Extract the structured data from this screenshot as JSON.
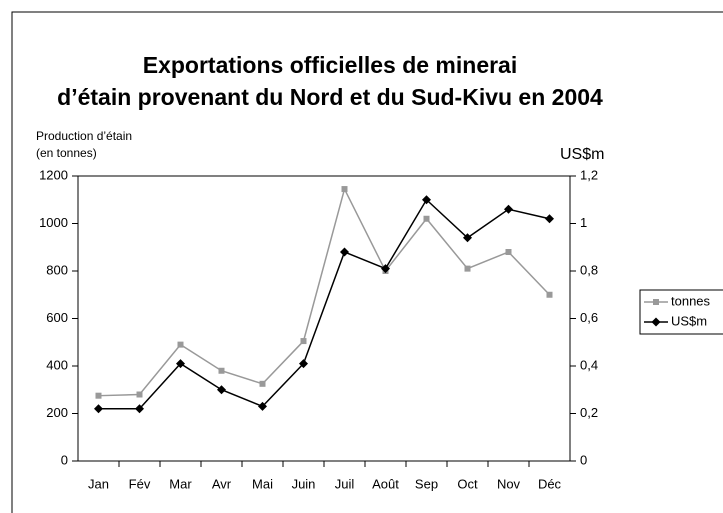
{
  "chart_data": {
    "type": "line",
    "title_lines": [
      "Exportations officielles de minerai",
      "d’étain provenant du Nord et du Sud-Kivu en 2004"
    ],
    "y_label_lines": [
      "Production d’étain",
      "(en tonnes)"
    ],
    "y2_label": "US$m",
    "categories": [
      "Jan",
      "Fév",
      "Mar",
      "Avr",
      "Mai",
      "Juin",
      "Juil",
      "Août",
      "Sep",
      "Oct",
      "Nov",
      "Déc"
    ],
    "series": [
      {
        "name": "tonnes",
        "color": "#999999",
        "marker": "square",
        "values": [
          275,
          280,
          490,
          380,
          325,
          505,
          1145,
          800,
          1020,
          810,
          880,
          700
        ]
      },
      {
        "name": "US$m",
        "color": "#000000",
        "marker": "diamond",
        "axis": "y2",
        "values": [
          0.22,
          0.22,
          0.41,
          0.3,
          0.23,
          0.41,
          0.88,
          0.81,
          1.1,
          0.94,
          1.06,
          1.02
        ]
      }
    ],
    "ylim": [
      0,
      1200
    ],
    "yticks": [
      0,
      200,
      400,
      600,
      800,
      1000,
      1200
    ],
    "y2lim": [
      0,
      1.2
    ],
    "y2ticks": [
      {
        "value": 0,
        "label": "0"
      },
      {
        "value": 0.2,
        "label": "0,2"
      },
      {
        "value": 0.4,
        "label": "0,4"
      },
      {
        "value": 0.6,
        "label": "0,6"
      },
      {
        "value": 0.8,
        "label": "0,8"
      },
      {
        "value": 1,
        "label": "1"
      },
      {
        "value": 1.2,
        "label": "1,2"
      }
    ],
    "legend": "right",
    "grid": false
  }
}
